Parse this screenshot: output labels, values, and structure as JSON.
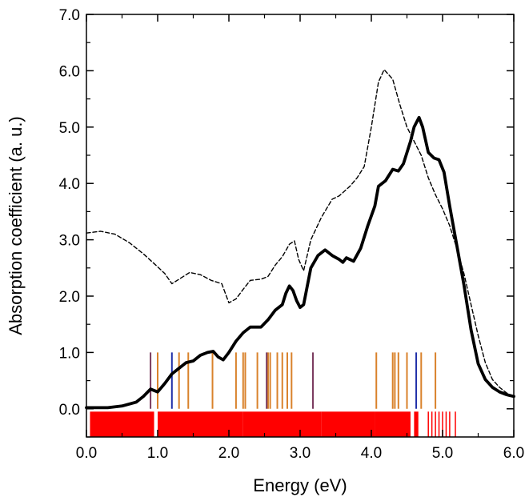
{
  "chart_data": {
    "type": "line",
    "title": "",
    "xlabel": "Energy (eV)",
    "ylabel": "Absorption coefficient (a. u.)",
    "xlim": [
      0.0,
      6.0
    ],
    "ylim": [
      -0.5,
      7.0
    ],
    "x_ticks": [
      "0.0",
      "1.0",
      "2.0",
      "3.0",
      "4.0",
      "5.0",
      "6.0"
    ],
    "y_ticks": [
      "0.0",
      "1.0",
      "2.0",
      "3.0",
      "4.0",
      "5.0",
      "6.0",
      "7.0"
    ],
    "series": [
      {
        "name": "solid",
        "style": "solid-thick",
        "color": "#000000",
        "points": [
          [
            0.0,
            0.02
          ],
          [
            0.3,
            0.02
          ],
          [
            0.5,
            0.05
          ],
          [
            0.7,
            0.12
          ],
          [
            0.8,
            0.22
          ],
          [
            0.9,
            0.35
          ],
          [
            1.0,
            0.3
          ],
          [
            1.1,
            0.45
          ],
          [
            1.2,
            0.62
          ],
          [
            1.3,
            0.72
          ],
          [
            1.4,
            0.82
          ],
          [
            1.5,
            0.85
          ],
          [
            1.6,
            0.95
          ],
          [
            1.7,
            1.0
          ],
          [
            1.78,
            1.02
          ],
          [
            1.85,
            0.92
          ],
          [
            1.92,
            0.87
          ],
          [
            2.0,
            1.0
          ],
          [
            2.1,
            1.2
          ],
          [
            2.2,
            1.35
          ],
          [
            2.3,
            1.45
          ],
          [
            2.45,
            1.45
          ],
          [
            2.55,
            1.58
          ],
          [
            2.65,
            1.75
          ],
          [
            2.75,
            1.85
          ],
          [
            2.8,
            2.05
          ],
          [
            2.85,
            2.18
          ],
          [
            2.9,
            2.1
          ],
          [
            2.95,
            1.92
          ],
          [
            3.0,
            1.8
          ],
          [
            3.05,
            1.85
          ],
          [
            3.15,
            2.5
          ],
          [
            3.25,
            2.72
          ],
          [
            3.35,
            2.82
          ],
          [
            3.45,
            2.72
          ],
          [
            3.55,
            2.65
          ],
          [
            3.6,
            2.6
          ],
          [
            3.65,
            2.68
          ],
          [
            3.75,
            2.62
          ],
          [
            3.85,
            2.85
          ],
          [
            3.95,
            3.25
          ],
          [
            4.05,
            3.6
          ],
          [
            4.1,
            3.95
          ],
          [
            4.2,
            4.05
          ],
          [
            4.3,
            4.25
          ],
          [
            4.38,
            4.22
          ],
          [
            4.45,
            4.35
          ],
          [
            4.55,
            4.75
          ],
          [
            4.6,
            5.0
          ],
          [
            4.67,
            5.17
          ],
          [
            4.72,
            5.0
          ],
          [
            4.8,
            4.55
          ],
          [
            4.88,
            4.45
          ],
          [
            4.95,
            4.42
          ],
          [
            5.02,
            4.2
          ],
          [
            5.1,
            3.6
          ],
          [
            5.2,
            2.9
          ],
          [
            5.3,
            2.2
          ],
          [
            5.4,
            1.4
          ],
          [
            5.5,
            0.8
          ],
          [
            5.6,
            0.52
          ],
          [
            5.7,
            0.38
          ],
          [
            5.8,
            0.3
          ],
          [
            5.9,
            0.25
          ],
          [
            6.0,
            0.22
          ]
        ]
      },
      {
        "name": "dashed",
        "style": "dashed",
        "color": "#000000",
        "points": [
          [
            0.0,
            3.12
          ],
          [
            0.2,
            3.15
          ],
          [
            0.4,
            3.1
          ],
          [
            0.6,
            2.95
          ],
          [
            0.8,
            2.75
          ],
          [
            1.0,
            2.52
          ],
          [
            1.1,
            2.4
          ],
          [
            1.2,
            2.22
          ],
          [
            1.3,
            2.3
          ],
          [
            1.45,
            2.42
          ],
          [
            1.6,
            2.38
          ],
          [
            1.75,
            2.28
          ],
          [
            1.9,
            2.22
          ],
          [
            2.0,
            1.88
          ],
          [
            2.1,
            1.95
          ],
          [
            2.2,
            2.12
          ],
          [
            2.3,
            2.28
          ],
          [
            2.45,
            2.3
          ],
          [
            2.55,
            2.35
          ],
          [
            2.65,
            2.55
          ],
          [
            2.75,
            2.7
          ],
          [
            2.85,
            2.92
          ],
          [
            2.92,
            2.98
          ],
          [
            2.98,
            2.65
          ],
          [
            3.05,
            2.45
          ],
          [
            3.15,
            3.0
          ],
          [
            3.3,
            3.4
          ],
          [
            3.45,
            3.72
          ],
          [
            3.55,
            3.78
          ],
          [
            3.7,
            3.95
          ],
          [
            3.8,
            4.1
          ],
          [
            3.9,
            4.3
          ],
          [
            4.0,
            5.0
          ],
          [
            4.1,
            5.8
          ],
          [
            4.18,
            6.02
          ],
          [
            4.3,
            5.85
          ],
          [
            4.4,
            5.4
          ],
          [
            4.5,
            5.0
          ],
          [
            4.6,
            4.75
          ],
          [
            4.7,
            4.5
          ],
          [
            4.8,
            4.1
          ],
          [
            4.9,
            3.8
          ],
          [
            5.0,
            3.55
          ],
          [
            5.1,
            3.25
          ],
          [
            5.2,
            2.85
          ],
          [
            5.3,
            2.4
          ],
          [
            5.4,
            1.85
          ],
          [
            5.5,
            1.3
          ],
          [
            5.6,
            0.82
          ],
          [
            5.7,
            0.52
          ],
          [
            5.8,
            0.38
          ],
          [
            5.9,
            0.28
          ],
          [
            6.0,
            0.22
          ]
        ]
      }
    ],
    "tall_transitions": {
      "height": 1.0,
      "orange": {
        "color": "#d9822b",
        "x": [
          1.0,
          1.3,
          1.43,
          1.77,
          2.1,
          2.2,
          2.23,
          2.4,
          2.55,
          2.58,
          2.68,
          2.75,
          2.82,
          2.88,
          4.07,
          4.3,
          4.33,
          4.38,
          4.5,
          4.7,
          4.9
        ]
      },
      "purple": {
        "color": "#7a3a5e",
        "x": [
          0.9,
          2.53,
          3.18
        ]
      },
      "blue": {
        "color": "#1f2fa8",
        "x": [
          1.2,
          4.63
        ]
      }
    },
    "short_transitions": {
      "color": "#ff0000",
      "y_top": -0.05,
      "y_bottom": -0.5,
      "spans": [
        [
          0.05,
          0.95
        ],
        [
          1.0,
          2.2
        ],
        [
          2.2,
          3.3
        ],
        [
          3.3,
          4.05
        ],
        [
          4.05,
          4.55
        ],
        [
          4.6,
          4.66
        ]
      ],
      "x": [
        4.8,
        4.85,
        4.9,
        4.95,
        5.0,
        5.05,
        5.1,
        5.18
      ]
    },
    "legend": "none",
    "grid": false
  }
}
